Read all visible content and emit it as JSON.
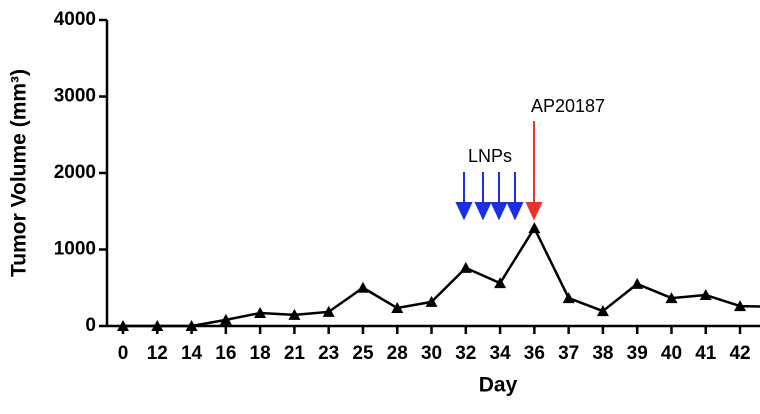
{
  "chart_data": {
    "type": "line",
    "x_label": "Day",
    "y_label": "Tumor Volume (mm³)",
    "categories": [
      "0",
      "12",
      "14",
      "16",
      "18",
      "21",
      "23",
      "25",
      "28",
      "30",
      "32",
      "34",
      "36",
      "37",
      "38",
      "39",
      "40",
      "41",
      "42",
      null
    ],
    "values": [
      0,
      0,
      0,
      80,
      170,
      145,
      185,
      500,
      235,
      315,
      760,
      560,
      1280,
      365,
      195,
      550,
      365,
      405,
      260,
      250
    ],
    "color": "#000000",
    "ylim": [
      0,
      4000
    ],
    "yticks": [
      0,
      1000,
      2000,
      3000,
      4000
    ],
    "annotations": [
      {
        "text": "LNPs"
      },
      {
        "text": "AP20187"
      }
    ]
  }
}
